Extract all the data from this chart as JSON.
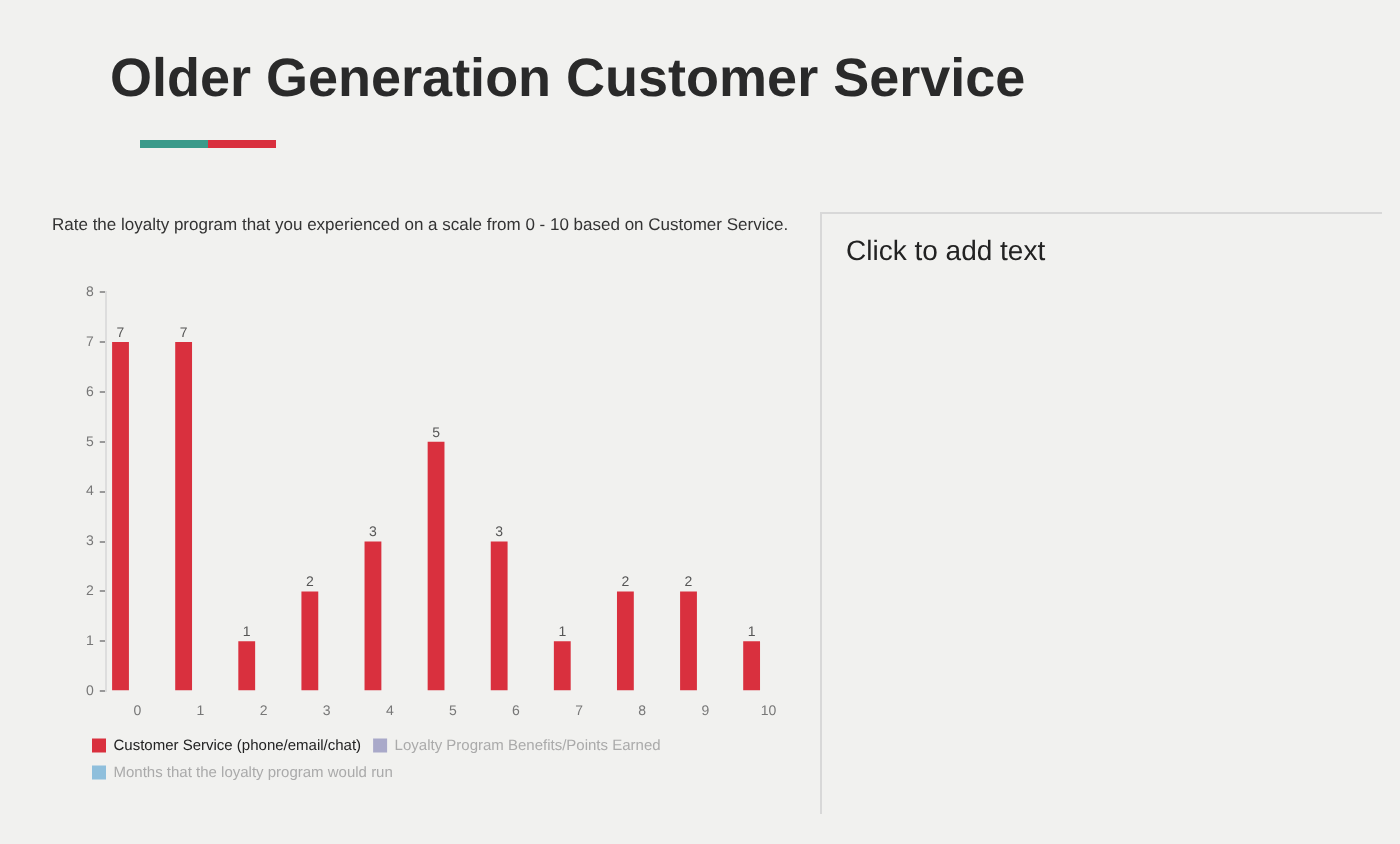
{
  "chart_data": {
    "type": "bar",
    "title": "Older Generation Customer Service",
    "subtitle": "Rate the loyalty program that you experienced on a scale from 0 - 10 based on Customer Service.",
    "annotations": [
      "Click to add text"
    ],
    "categories": [
      "0",
      "1",
      "2",
      "3",
      "4",
      "5",
      "6",
      "7",
      "8",
      "9",
      "10"
    ],
    "series": [
      {
        "name": "Customer Service (phone/email/chat)",
        "color": "#d9303e",
        "values": [
          7,
          7,
          1,
          2,
          3,
          5,
          3,
          1,
          2,
          2,
          1
        ]
      },
      {
        "name": "Loyalty Program Benefits/Points Earned",
        "color": "#a9a9c9",
        "values": [
          null,
          null,
          null,
          null,
          null,
          null,
          null,
          null,
          null,
          null,
          null
        ]
      },
      {
        "name": "Months that the loyalty program would run",
        "color": "#8fbfdc",
        "values": [
          null,
          null,
          null,
          null,
          null,
          null,
          null,
          null,
          null,
          null,
          null
        ]
      }
    ],
    "ylim": [
      0,
      8
    ],
    "yticks": [
      0,
      1,
      2,
      3,
      4,
      5,
      6,
      7,
      8
    ],
    "grid": false,
    "legend": "bottom",
    "data_labels": true
  }
}
